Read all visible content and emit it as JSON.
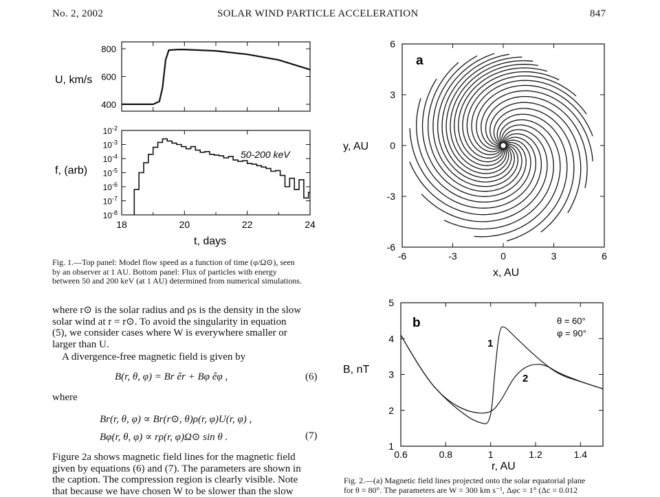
{
  "header": {
    "issue": "No. 2, 2002",
    "title": "SOLAR WIND PARTICLE ACCELERATION",
    "page": "847"
  },
  "fig1": {
    "top_ylabel": "U, km/s",
    "bottom_ylabel": "f, (arb)",
    "xlabel": "t, days",
    "annotation": "50-200 keV",
    "caption_lines": [
      "Fig. 1.—Top panel: Model flow speed as a function of time (φ/Ω⊙), seen",
      "by an observer at 1 AU. Bottom panel: Flux of particles with energy",
      "between 50 and 200 keV (at 1 AU) determined from numerical simulations."
    ]
  },
  "fig2": {
    "a_label": "a",
    "a_xlabel": "x, AU",
    "a_ylabel": "y, AU",
    "b_label": "b",
    "b_xlabel": "r, AU",
    "b_ylabel": "B, nT",
    "b_legend_theta": "θ = 60°",
    "b_legend_phi": "φ = 90°",
    "curve1_label": "1",
    "curve2_label": "2",
    "caption_lines": [
      "Fig. 2.—(a) Magnetic field lines projected onto the solar equatorial plane",
      "for θ = 80°. The parameters are W = 300 km s⁻¹, Δφc = 1° (Δc = 0.012"
    ]
  },
  "text": {
    "p1": [
      "where r⊙ is the solar radius and ρs is the density in the slow",
      "solar wind at r = r⊙. To avoid the singularity in equation",
      "(5), we consider cases where W is everywhere smaller or",
      "larger than U."
    ],
    "p2": "A divergence-free magnetic field is given by",
    "eq6": "B(r, θ, φ) = Br êr + Bφ êφ ,",
    "eq6_num": "(6)",
    "where": "where",
    "eq7a": "Br(r, θ, φ) ∝ Br(r⊙, θ)ρ(r, φ)U(r, φ) ,",
    "eq7b": "Bφ(r, θ, φ) ∝ rρ(r, φ)Ω⊙ sin θ .",
    "eq7_num": "(7)",
    "p3": [
      "Figure 2a shows magnetic field lines for the magnetic field",
      "given by equations (6) and (7). The parameters are shown in",
      "the caption. The compression region is clearly visible. Note",
      "that because we have chosen W to be slower than the slow"
    ]
  },
  "chart_data": [
    {
      "type": "line",
      "panel": "Fig. 1 top",
      "xlabel": "",
      "ylabel": "U, km/s",
      "xlim": [
        18,
        24
      ],
      "ylim": [
        350,
        850
      ],
      "yticks": [
        400,
        600,
        800
      ],
      "x": [
        18,
        18.5,
        19.0,
        19.2,
        19.3,
        19.4,
        19.5,
        19.8,
        20,
        21,
        22,
        23,
        24
      ],
      "y": [
        400,
        400,
        400,
        420,
        520,
        720,
        790,
        795,
        795,
        785,
        760,
        720,
        650
      ]
    },
    {
      "type": "line",
      "panel": "Fig. 1 bottom",
      "annotation": "50-200 keV",
      "xlabel": "t, days",
      "ylabel": "f, (arb)",
      "scale": "log",
      "xlim": [
        18,
        24
      ],
      "ylim_exp": [
        -8,
        -2
      ],
      "xticks": [
        18,
        20,
        22,
        24
      ],
      "ytick_labels": [
        "10-2",
        "10-3",
        "10-4",
        "10-5",
        "10-6",
        "10-7",
        "10-8"
      ],
      "x": [
        18.4,
        18.55,
        18.7,
        18.85,
        19.0,
        19.15,
        19.3,
        19.45,
        19.6,
        19.75,
        19.9,
        20.05,
        20.2,
        20.35,
        20.5,
        20.65,
        20.8,
        20.95,
        21.1,
        21.25,
        21.4,
        21.55,
        21.7,
        21.85,
        22.0,
        22.15,
        22.3,
        22.45,
        22.6,
        22.75,
        22.9,
        23.05,
        23.2,
        23.35,
        23.5,
        23.65,
        23.8,
        23.95
      ],
      "y_exp": [
        -6.2,
        -5.0,
        -4.3,
        -3.7,
        -3.2,
        -2.85,
        -2.6,
        -2.75,
        -2.9,
        -3.0,
        -3.15,
        -3.3,
        -3.15,
        -3.4,
        -3.55,
        -3.5,
        -3.7,
        -3.75,
        -3.8,
        -3.95,
        -3.85,
        -4.1,
        -4.2,
        -4.15,
        -4.35,
        -4.4,
        -4.5,
        -4.6,
        -4.7,
        -4.9,
        -4.85,
        -5.2,
        -6.0,
        -5.4,
        -6.2,
        -5.5,
        -6.8,
        -6.4
      ]
    },
    {
      "type": "line",
      "panel": "Fig. 2a",
      "xlabel": "x, AU",
      "ylabel": "y, AU",
      "xlim": [
        -6,
        6
      ],
      "ylim": [
        -6,
        6
      ],
      "ticks": [
        -6,
        -3,
        0,
        3,
        6
      ],
      "n_field_lines": 24
    },
    {
      "type": "line",
      "panel": "Fig. 2b",
      "xlabel": "r, AU",
      "ylabel": "B, nT",
      "xlim": [
        0.6,
        1.5
      ],
      "ylim": [
        1,
        5
      ],
      "xticks": [
        0.6,
        0.8,
        1.0,
        1.2,
        1.4
      ],
      "yticks": [
        1,
        2,
        3,
        4,
        5
      ],
      "series": [
        {
          "name": "1",
          "x": [
            0.6,
            0.7,
            0.8,
            0.9,
            0.95,
            1.0,
            1.02,
            1.04,
            1.06,
            1.1,
            1.2,
            1.3,
            1.4,
            1.5
          ],
          "y": [
            4.1,
            3.0,
            2.3,
            1.8,
            1.65,
            1.6,
            3.2,
            4.3,
            4.35,
            4.1,
            3.5,
            3.0,
            2.8,
            2.6
          ]
        },
        {
          "name": "2",
          "x": [
            0.6,
            0.7,
            0.8,
            0.9,
            1.0,
            1.05,
            1.1,
            1.15,
            1.2,
            1.25,
            1.3,
            1.4,
            1.5
          ],
          "y": [
            4.1,
            3.0,
            2.3,
            1.95,
            1.9,
            2.3,
            2.9,
            3.2,
            3.3,
            3.25,
            3.05,
            2.8,
            2.6
          ]
        }
      ]
    }
  ]
}
